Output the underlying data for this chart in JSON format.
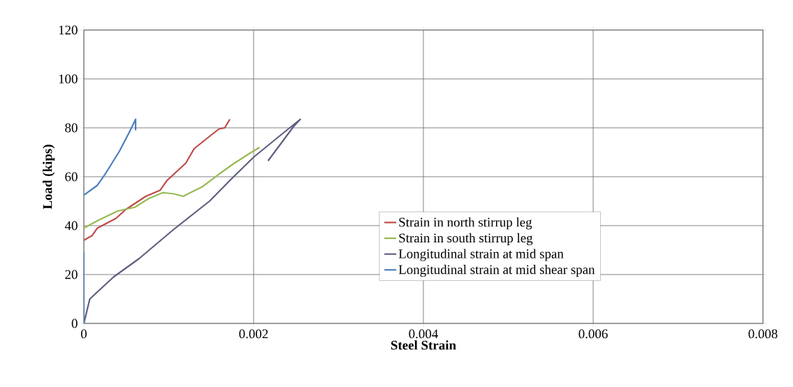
{
  "chart_data": {
    "type": "line",
    "xlabel": "Steel Strain",
    "ylabel": "Load (kips)",
    "xlim": [
      0,
      0.008
    ],
    "xticks": [
      0,
      0.002,
      0.004,
      0.006,
      0.008
    ],
    "ylim": [
      0,
      120
    ],
    "yticks": [
      0,
      20,
      40,
      60,
      80,
      100,
      120
    ],
    "grid": true,
    "legend": "right",
    "marker": "none",
    "line_style": "solid",
    "series": [
      {
        "name": "Strain in north stirrup leg",
        "color": "#be4b48",
        "x": [
          0,
          0.0001,
          0.00016,
          0.00038,
          0.00049,
          0.00073,
          0.0009,
          0.00098,
          0.00109,
          0.0012,
          0.0013,
          0.00148,
          0.00159,
          0.00166,
          0.00172
        ],
        "values": [
          34,
          36,
          39,
          43,
          46.5,
          52,
          54.5,
          58.5,
          62,
          65.5,
          71.5,
          76.5,
          79.5,
          80,
          83.5
        ]
      },
      {
        "name": "Strain in south stirrup leg",
        "color": "#98b954",
        "x": [
          0,
          0.00016,
          0.0004,
          0.0006,
          0.00076,
          0.00093,
          0.00106,
          0.00117,
          0.0014,
          0.00159,
          0.00175,
          0.00195,
          0.00207
        ],
        "values": [
          39,
          42,
          46,
          47.5,
          51,
          53.5,
          53,
          52,
          56,
          61,
          65,
          69.5,
          72
        ]
      },
      {
        "name": "Longitudinal strain at mid span",
        "color": "#5f5f80",
        "x": [
          0,
          7e-05,
          0.00035,
          0.00065,
          0.00106,
          0.00148,
          0.00175,
          0.002,
          0.0023,
          0.00255,
          0.00247,
          0.00217
        ],
        "values": [
          0,
          10,
          19,
          26.5,
          38.5,
          50,
          59.5,
          68,
          76.5,
          83.5,
          80.5,
          66.5
        ]
      },
      {
        "name": "Longitudinal strain at mid shear span",
        "color": "#4a7ebb",
        "x": [
          0,
          0,
          null,
          0,
          0.00016,
          0.00025,
          0.00042,
          0.00054,
          0.00061,
          0.00061
        ],
        "values": [
          0,
          29,
          null,
          52.5,
          56.5,
          61,
          70.5,
          78.5,
          83.5,
          79
        ]
      }
    ]
  }
}
